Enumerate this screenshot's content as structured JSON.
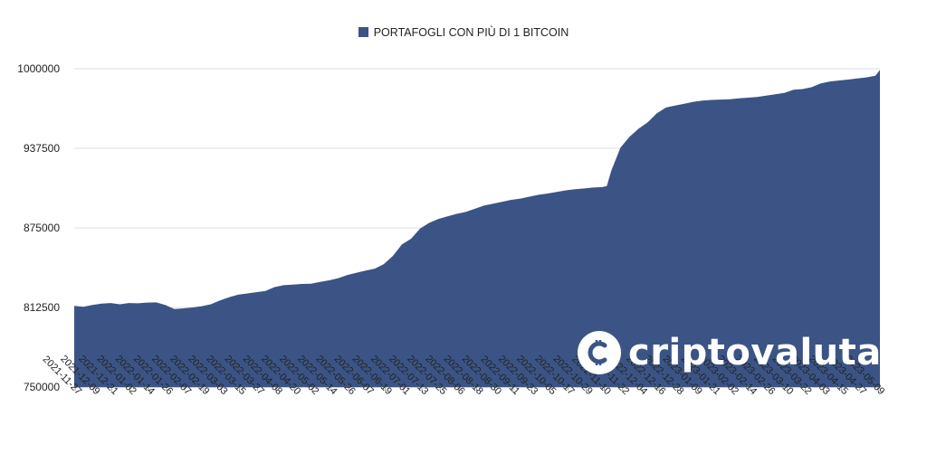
{
  "chart_data": {
    "type": "area",
    "title": "",
    "legend": [
      "PORTAFOGLI CON PIÙ DI 1 BITCOIN"
    ],
    "legend_position": "top-center",
    "series_color": "#3b5485",
    "grid": true,
    "ylim": [
      750000,
      1000000
    ],
    "yticks": [
      "1000000",
      "937500",
      "875000",
      "812500",
      "750000"
    ],
    "ytick_values": [
      1000000,
      937500,
      875000,
      812500,
      750000
    ],
    "xticks": [
      "2021-11-27",
      "2021-12-09",
      "2021-12-21",
      "2022-01-02",
      "2022-01-14",
      "2022-01-26",
      "2022-02-07",
      "2022-02-19",
      "2022-03-03",
      "2022-03-15",
      "2022-03-27",
      "2022-04-08",
      "2022-04-20",
      "2022-05-02",
      "2022-05-14",
      "2022-05-26",
      "2022-06-07",
      "2022-06-19",
      "2022-07-01",
      "2022-07-13",
      "2022-07-25",
      "2022-08-06",
      "2022-08-18",
      "2022-08-30",
      "2022-09-11",
      "2022-09-23",
      "2022-10-05",
      "2022-10-17",
      "2022-10-29",
      "2022-11-10",
      "2022-11-22",
      "2022-12-04",
      "2022-12-16",
      "2022-12-28",
      "2023-01-09",
      "2023-01-21",
      "2023-02-02",
      "2023-02-14",
      "2023-02-26",
      "2023-03-10",
      "2023-03-22",
      "2023-04-03",
      "2023-04-15",
      "2023-04-27",
      "2023-05-09"
    ],
    "series": [
      {
        "name": "PORTAFOGLI CON PIÙ DI 1 BITCOIN",
        "x": [
          "2021-11-27",
          "2021-12-03",
          "2021-12-09",
          "2021-12-15",
          "2021-12-21",
          "2021-12-27",
          "2022-01-02",
          "2022-01-08",
          "2022-01-14",
          "2022-01-20",
          "2022-01-26",
          "2022-02-01",
          "2022-02-07",
          "2022-02-13",
          "2022-02-19",
          "2022-02-25",
          "2022-03-03",
          "2022-03-09",
          "2022-03-15",
          "2022-03-21",
          "2022-03-27",
          "2022-04-02",
          "2022-04-08",
          "2022-04-14",
          "2022-04-20",
          "2022-04-26",
          "2022-05-02",
          "2022-05-08",
          "2022-05-14",
          "2022-05-20",
          "2022-05-26",
          "2022-06-01",
          "2022-06-07",
          "2022-06-13",
          "2022-06-19",
          "2022-06-25",
          "2022-07-01",
          "2022-07-07",
          "2022-07-13",
          "2022-07-19",
          "2022-07-25",
          "2022-07-31",
          "2022-08-06",
          "2022-08-12",
          "2022-08-18",
          "2022-08-24",
          "2022-08-30",
          "2022-09-05",
          "2022-09-11",
          "2022-09-17",
          "2022-09-23",
          "2022-09-29",
          "2022-10-05",
          "2022-10-11",
          "2022-10-17",
          "2022-10-23",
          "2022-10-29",
          "2022-11-04",
          "2022-11-10",
          "2022-11-13",
          "2022-11-16",
          "2022-11-22",
          "2022-11-28",
          "2022-12-04",
          "2022-12-10",
          "2022-12-16",
          "2022-12-22",
          "2022-12-28",
          "2023-01-03",
          "2023-01-09",
          "2023-01-15",
          "2023-01-21",
          "2023-01-27",
          "2023-02-02",
          "2023-02-08",
          "2023-02-14",
          "2023-02-20",
          "2023-02-26",
          "2023-03-04",
          "2023-03-10",
          "2023-03-16",
          "2023-03-22",
          "2023-03-28",
          "2023-04-03",
          "2023-04-09",
          "2023-04-15",
          "2023-04-21",
          "2023-04-27",
          "2023-05-03",
          "2023-05-09",
          "2023-05-12"
        ],
        "values": [
          813800,
          813000,
          814500,
          815500,
          816000,
          815000,
          816000,
          815800,
          816300,
          816500,
          814500,
          811200,
          811800,
          812500,
          813500,
          815000,
          818000,
          820500,
          822500,
          823500,
          824500,
          825500,
          828500,
          830000,
          830500,
          831000,
          831200,
          832500,
          833800,
          835500,
          838000,
          839800,
          841500,
          843000,
          846500,
          853000,
          862000,
          866500,
          874500,
          879000,
          882000,
          884000,
          886000,
          887500,
          890000,
          892500,
          894000,
          895500,
          897000,
          898000,
          899500,
          901000,
          902000,
          903200,
          904500,
          905300,
          906000,
          906700,
          907000,
          907800,
          920000,
          938000,
          946500,
          953000,
          958000,
          965000,
          969500,
          971000,
          972500,
          974000,
          975000,
          975500,
          975800,
          976000,
          976700,
          977300,
          977800,
          978800,
          980000,
          981000,
          983500,
          984000,
          985500,
          988500,
          990000,
          990800,
          991500,
          992400,
          993200,
          994500,
          999000
        ]
      }
    ]
  }
}
